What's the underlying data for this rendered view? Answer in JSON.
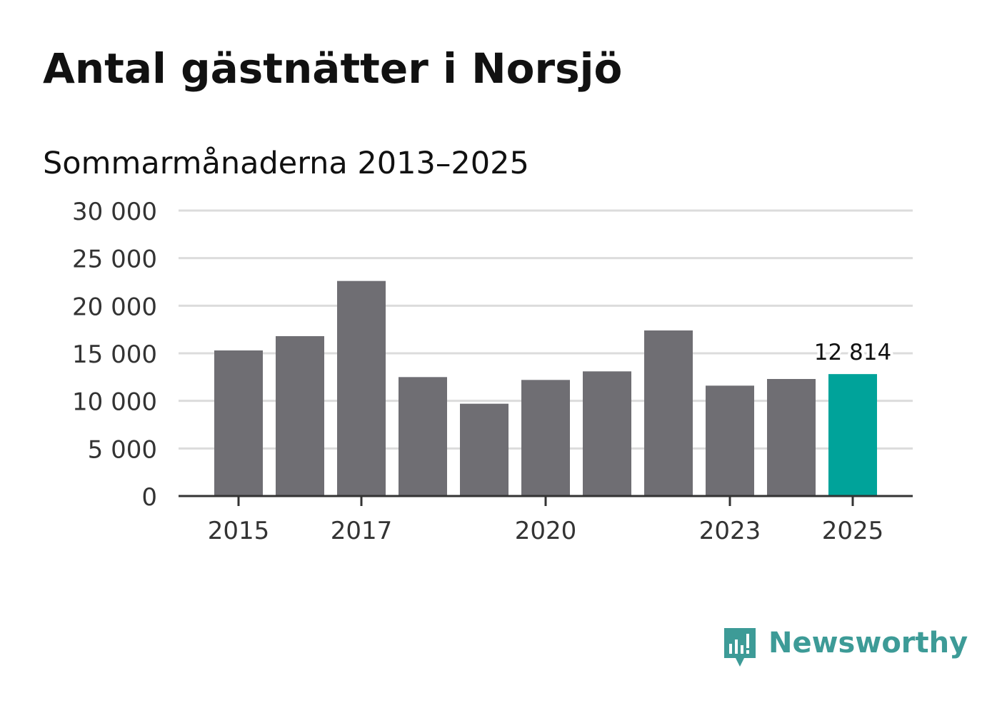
{
  "title": "Antal gästnätter i Norsjö",
  "subtitle": "Sommarmånaderna 2013–2025",
  "brand": {
    "name": "Newsworthy",
    "icon": "newsworthy-logo-icon"
  },
  "colors": {
    "bar": "#6f6e73",
    "highlight": "#00a39a",
    "grid": "#dcdcdc",
    "axis": "#333333",
    "text": "#333333",
    "brand": "#3d9b97"
  },
  "chart_data": {
    "type": "bar",
    "title": "Antal gästnätter i Norsjö",
    "subtitle": "Sommarmånaderna 2013–2025",
    "xlabel": "",
    "ylabel": "",
    "x": [
      2015,
      2016,
      2017,
      2018,
      2019,
      2020,
      2021,
      2022,
      2023,
      2024,
      2025
    ],
    "values": [
      15300,
      16800,
      22600,
      12500,
      9700,
      12200,
      13100,
      17400,
      11600,
      12300,
      12814
    ],
    "highlight_index": 10,
    "highlight_label": "12 814",
    "xticks": [
      2015,
      2017,
      2020,
      2023,
      2025
    ],
    "xtick_labels": [
      "2015",
      "2017",
      "2020",
      "2023",
      "2025"
    ],
    "yticks": [
      0,
      5000,
      10000,
      15000,
      20000,
      25000,
      30000
    ],
    "ytick_labels": [
      "0",
      "5 000",
      "10 000",
      "15 000",
      "20 000",
      "25 000",
      "30 000"
    ],
    "ylim": [
      0,
      30000
    ],
    "grid": true,
    "legend": "none"
  }
}
